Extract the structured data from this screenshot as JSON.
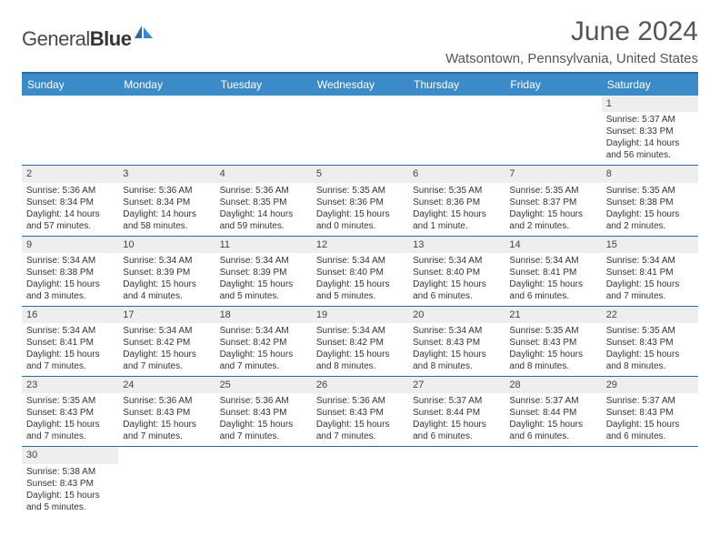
{
  "logo": {
    "text_light": "General",
    "text_bold": "Blue"
  },
  "header": {
    "month_title": "June 2024",
    "location": "Watsontown, Pennsylvania, United States"
  },
  "colors": {
    "header_bar": "#3b8bc9",
    "row_divider": "#2b6aa8",
    "daynum_bg": "#eeeeee"
  },
  "day_names": [
    "Sunday",
    "Monday",
    "Tuesday",
    "Wednesday",
    "Thursday",
    "Friday",
    "Saturday"
  ],
  "weeks": [
    [
      null,
      null,
      null,
      null,
      null,
      null,
      {
        "n": "1",
        "sunrise": "5:37 AM",
        "sunset": "8:33 PM",
        "daylight": "14 hours and 56 minutes."
      }
    ],
    [
      {
        "n": "2",
        "sunrise": "5:36 AM",
        "sunset": "8:34 PM",
        "daylight": "14 hours and 57 minutes."
      },
      {
        "n": "3",
        "sunrise": "5:36 AM",
        "sunset": "8:34 PM",
        "daylight": "14 hours and 58 minutes."
      },
      {
        "n": "4",
        "sunrise": "5:36 AM",
        "sunset": "8:35 PM",
        "daylight": "14 hours and 59 minutes."
      },
      {
        "n": "5",
        "sunrise": "5:35 AM",
        "sunset": "8:36 PM",
        "daylight": "15 hours and 0 minutes."
      },
      {
        "n": "6",
        "sunrise": "5:35 AM",
        "sunset": "8:36 PM",
        "daylight": "15 hours and 1 minute."
      },
      {
        "n": "7",
        "sunrise": "5:35 AM",
        "sunset": "8:37 PM",
        "daylight": "15 hours and 2 minutes."
      },
      {
        "n": "8",
        "sunrise": "5:35 AM",
        "sunset": "8:38 PM",
        "daylight": "15 hours and 2 minutes."
      }
    ],
    [
      {
        "n": "9",
        "sunrise": "5:34 AM",
        "sunset": "8:38 PM",
        "daylight": "15 hours and 3 minutes."
      },
      {
        "n": "10",
        "sunrise": "5:34 AM",
        "sunset": "8:39 PM",
        "daylight": "15 hours and 4 minutes."
      },
      {
        "n": "11",
        "sunrise": "5:34 AM",
        "sunset": "8:39 PM",
        "daylight": "15 hours and 5 minutes."
      },
      {
        "n": "12",
        "sunrise": "5:34 AM",
        "sunset": "8:40 PM",
        "daylight": "15 hours and 5 minutes."
      },
      {
        "n": "13",
        "sunrise": "5:34 AM",
        "sunset": "8:40 PM",
        "daylight": "15 hours and 6 minutes."
      },
      {
        "n": "14",
        "sunrise": "5:34 AM",
        "sunset": "8:41 PM",
        "daylight": "15 hours and 6 minutes."
      },
      {
        "n": "15",
        "sunrise": "5:34 AM",
        "sunset": "8:41 PM",
        "daylight": "15 hours and 7 minutes."
      }
    ],
    [
      {
        "n": "16",
        "sunrise": "5:34 AM",
        "sunset": "8:41 PM",
        "daylight": "15 hours and 7 minutes."
      },
      {
        "n": "17",
        "sunrise": "5:34 AM",
        "sunset": "8:42 PM",
        "daylight": "15 hours and 7 minutes."
      },
      {
        "n": "18",
        "sunrise": "5:34 AM",
        "sunset": "8:42 PM",
        "daylight": "15 hours and 7 minutes."
      },
      {
        "n": "19",
        "sunrise": "5:34 AM",
        "sunset": "8:42 PM",
        "daylight": "15 hours and 8 minutes."
      },
      {
        "n": "20",
        "sunrise": "5:34 AM",
        "sunset": "8:43 PM",
        "daylight": "15 hours and 8 minutes."
      },
      {
        "n": "21",
        "sunrise": "5:35 AM",
        "sunset": "8:43 PM",
        "daylight": "15 hours and 8 minutes."
      },
      {
        "n": "22",
        "sunrise": "5:35 AM",
        "sunset": "8:43 PM",
        "daylight": "15 hours and 8 minutes."
      }
    ],
    [
      {
        "n": "23",
        "sunrise": "5:35 AM",
        "sunset": "8:43 PM",
        "daylight": "15 hours and 7 minutes."
      },
      {
        "n": "24",
        "sunrise": "5:36 AM",
        "sunset": "8:43 PM",
        "daylight": "15 hours and 7 minutes."
      },
      {
        "n": "25",
        "sunrise": "5:36 AM",
        "sunset": "8:43 PM",
        "daylight": "15 hours and 7 minutes."
      },
      {
        "n": "26",
        "sunrise": "5:36 AM",
        "sunset": "8:43 PM",
        "daylight": "15 hours and 7 minutes."
      },
      {
        "n": "27",
        "sunrise": "5:37 AM",
        "sunset": "8:44 PM",
        "daylight": "15 hours and 6 minutes."
      },
      {
        "n": "28",
        "sunrise": "5:37 AM",
        "sunset": "8:44 PM",
        "daylight": "15 hours and 6 minutes."
      },
      {
        "n": "29",
        "sunrise": "5:37 AM",
        "sunset": "8:43 PM",
        "daylight": "15 hours and 6 minutes."
      }
    ],
    [
      {
        "n": "30",
        "sunrise": "5:38 AM",
        "sunset": "8:43 PM",
        "daylight": "15 hours and 5 minutes."
      },
      null,
      null,
      null,
      null,
      null,
      null
    ]
  ],
  "labels": {
    "sunrise_prefix": "Sunrise: ",
    "sunset_prefix": "Sunset: ",
    "daylight_prefix": "Daylight: "
  }
}
